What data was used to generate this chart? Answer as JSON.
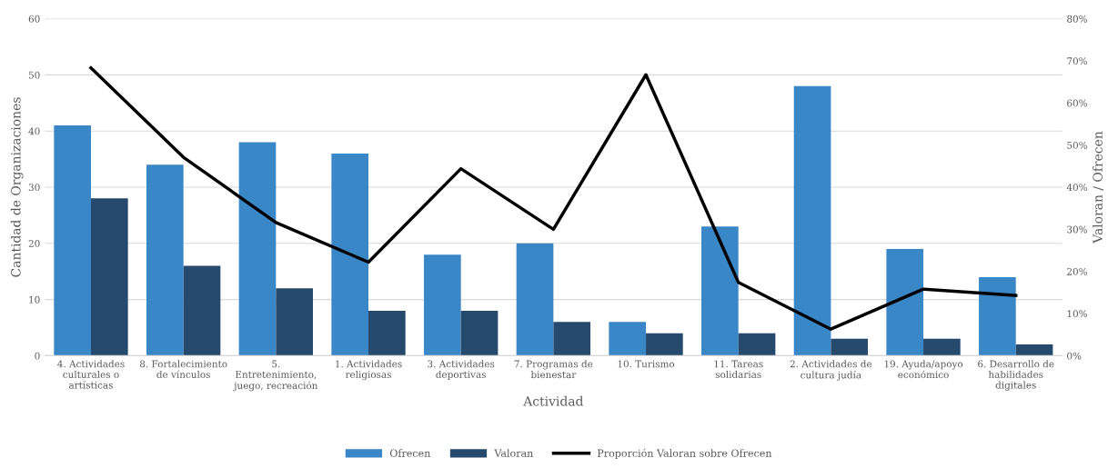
{
  "chart_data": {
    "type": "bar",
    "xlabel": "Actividad",
    "ylabel": "Cantidad de Organizaciones",
    "y2label": "Valoran / Ofrecen",
    "categories": [
      "4. Actividades\nculturales o\nartísticas",
      "8. Fortalecimiento\nde vínculos",
      "5.\nEntretenimiento,\njuego, recreación",
      "1. Actividades\nreligiosas",
      "3. Actividades\ndeportivas",
      "7. Programas de\nbienestar",
      "10. Turismo",
      "11. Tareas\nsolidarias",
      "2. Actividades de\ncultura judía",
      "19. Ayuda/apoyo\neconómico",
      "6. Desarrollo de\nhabilidades\ndigitales"
    ],
    "series": [
      {
        "name": "Ofrecen",
        "color": "#3a87c8",
        "values": [
          41,
          34,
          38,
          36,
          18,
          20,
          6,
          23,
          48,
          19,
          14
        ]
      },
      {
        "name": "Valoran",
        "color": "#264a6e",
        "values": [
          28,
          16,
          12,
          8,
          8,
          6,
          4,
          4,
          3,
          3,
          2
        ]
      },
      {
        "name": "Proporción Valoran sobre Ofrecen",
        "type": "line",
        "axis": "y2",
        "color": "#000000",
        "values": [
          68.3,
          47.1,
          31.6,
          22.2,
          44.4,
          30,
          66.7,
          17.4,
          6.3,
          15.8,
          14.3
        ]
      }
    ],
    "ylim": [
      0,
      60
    ],
    "yticks": [
      0,
      10,
      20,
      30,
      40,
      50,
      60
    ],
    "y2lim": [
      0,
      80
    ],
    "y2ticks": [
      {
        "value": 0,
        "label": "0%"
      },
      {
        "value": 10,
        "label": "10%"
      },
      {
        "value": 20,
        "label": "20%"
      },
      {
        "value": 30,
        "label": "30%"
      },
      {
        "value": 40,
        "label": "40%"
      },
      {
        "value": 50,
        "label": "50%"
      },
      {
        "value": 60,
        "label": "60%"
      },
      {
        "value": 70,
        "label": "70%"
      },
      {
        "value": 80,
        "label": "80%"
      }
    ],
    "grid": "y",
    "legend": "bottom",
    "marker": "none",
    "line_style": "solid"
  }
}
